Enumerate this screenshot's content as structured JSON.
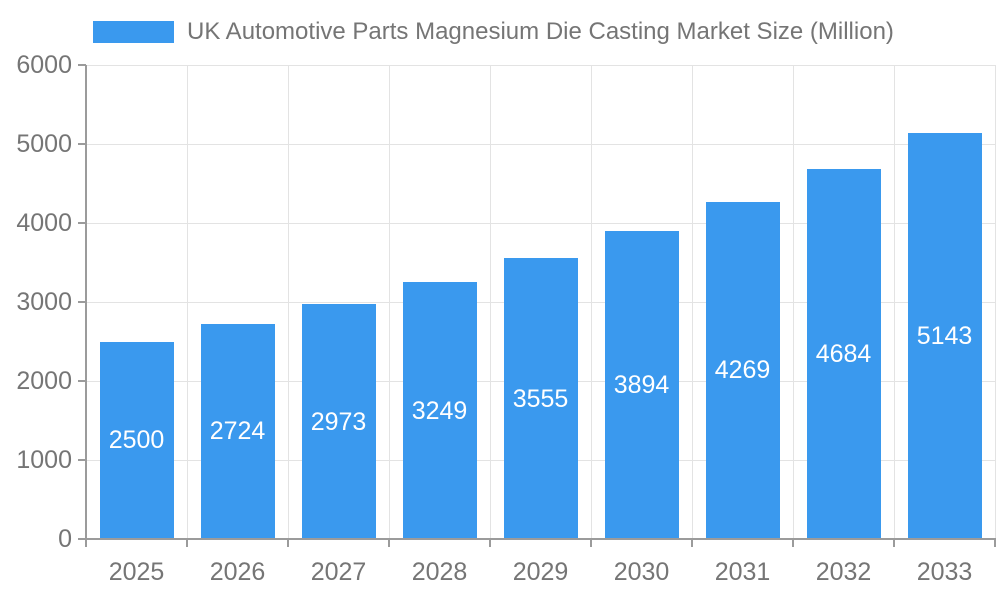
{
  "colors": {
    "bar": "#3A99EE",
    "axis": "#9B9B9B",
    "grid": "#E3E3E3",
    "text": "#757575",
    "bar_label": "#FFFFFF",
    "background": "#FFFFFF"
  },
  "legend": {
    "label": "UK Automotive Parts Magnesium Die Casting Market Size (Million)"
  },
  "chart_data": {
    "type": "bar",
    "title": "UK Automotive Parts Magnesium Die Casting Market Size (Million)",
    "categories": [
      "2025",
      "2026",
      "2027",
      "2028",
      "2029",
      "2030",
      "2031",
      "2032",
      "2033"
    ],
    "values": [
      2500,
      2724,
      2973,
      3249,
      3555,
      3894,
      4269,
      4684,
      5143
    ],
    "series": [
      {
        "name": "UK Automotive Parts Magnesium Die Casting Market Size (Million)",
        "values": [
          2500,
          2724,
          2973,
          3249,
          3555,
          3894,
          4269,
          4684,
          5143
        ]
      }
    ],
    "xlabel": "",
    "ylabel": "",
    "ylim": [
      0,
      6000
    ],
    "yticks": [
      0,
      1000,
      2000,
      3000,
      4000,
      5000,
      6000
    ],
    "grid": true,
    "legend_position": "top",
    "bar_labels": "inside-center"
  }
}
